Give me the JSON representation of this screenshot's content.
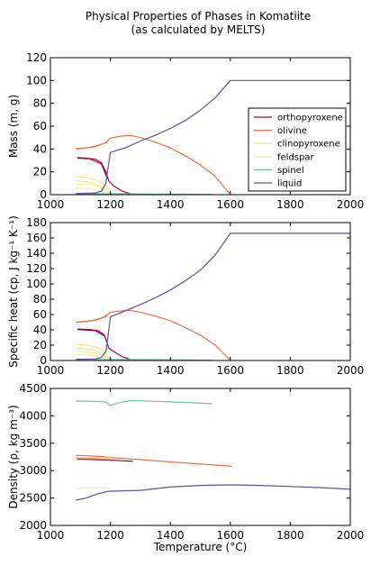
{
  "figure": {
    "title_line1": "Physical Properties of Phases in Komatiite",
    "title_line2": "(as calculated by MELTS)"
  },
  "colors": {
    "orthopyroxene": "#9e0142",
    "olivine": "#f46d43",
    "clinopyroxene": "#fee08b",
    "feldspar": "#e6f598",
    "spinel": "#66c2a5",
    "liquid": "#5e4fa2"
  },
  "chart_data": [
    {
      "type": "line",
      "ylabel": "Mass (m, g)",
      "xlim": [
        1000,
        2000
      ],
      "ylim": [
        0,
        120
      ],
      "xticks": [
        1000,
        1200,
        1400,
        1600,
        1800,
        2000
      ],
      "yticks": [
        0,
        20,
        40,
        60,
        80,
        100,
        120
      ],
      "legend": {
        "placement": "right",
        "entries": [
          "orthopyroxene",
          "olivine",
          "clinopyroxene",
          "feldspar",
          "spinel",
          "liquid"
        ]
      },
      "series": [
        {
          "name": "orthopyroxene",
          "points": [
            [
              1090,
              32.5
            ],
            [
              1120,
              32
            ],
            [
              1150,
              31
            ],
            [
              1170,
              28
            ],
            [
              1185,
              20
            ],
            [
              1195,
              12
            ],
            [
              1210,
              8
            ],
            [
              1240,
              3
            ],
            [
              1275,
              0
            ]
          ]
        },
        {
          "name": "orthopyroxene",
          "points": [
            [
              1090,
              32
            ],
            [
              1130,
              31.5
            ],
            [
              1170,
              27
            ],
            [
              1190,
              14
            ]
          ]
        },
        {
          "name": "olivine",
          "points": [
            [
              1085,
              40.5
            ],
            [
              1120,
              41
            ],
            [
              1150,
              42.5
            ],
            [
              1180,
              45
            ],
            [
              1190,
              47
            ],
            [
              1200,
              49.5
            ],
            [
              1230,
              51
            ],
            [
              1260,
              52
            ],
            [
              1275,
              51.5
            ],
            [
              1300,
              50
            ],
            [
              1350,
              46
            ],
            [
              1400,
              41
            ],
            [
              1450,
              34
            ],
            [
              1500,
              26
            ],
            [
              1550,
              16
            ],
            [
              1600,
              0
            ]
          ]
        },
        {
          "name": "olivine",
          "points": [
            [
              1085,
              40
            ],
            [
              1150,
              42
            ],
            [
              1190,
              46
            ]
          ]
        },
        {
          "name": "clinopyroxene",
          "points": [
            [
              1085,
              16
            ],
            [
              1120,
              15
            ],
            [
              1150,
              13
            ],
            [
              1170,
              10
            ],
            [
              1190,
              5
            ],
            [
              1200,
              0
            ]
          ]
        },
        {
          "name": "clinopyroxene",
          "points": [
            [
              1085,
              12
            ],
            [
              1130,
              11
            ],
            [
              1165,
              8
            ],
            [
              1190,
              3
            ]
          ]
        },
        {
          "name": "feldspar",
          "points": [
            [
              1085,
              9.5
            ],
            [
              1130,
              9
            ],
            [
              1160,
              7
            ],
            [
              1185,
              3.5
            ],
            [
              1200,
              1
            ]
          ]
        },
        {
          "name": "feldspar",
          "points": [
            [
              1085,
              6
            ],
            [
              1140,
              5
            ],
            [
              1180,
              2
            ]
          ]
        },
        {
          "name": "spinel",
          "points": [
            [
              1085,
              0.8
            ],
            [
              1200,
              0.8
            ],
            [
              1300,
              0.6
            ],
            [
              1450,
              0.4
            ],
            [
              1540,
              0.2
            ]
          ]
        },
        {
          "name": "liquid",
          "points": [
            [
              1085,
              1
            ],
            [
              1150,
              1.5
            ],
            [
              1170,
              3
            ],
            [
              1185,
              10
            ],
            [
              1190,
              20
            ],
            [
              1200,
              37
            ],
            [
              1250,
              41
            ],
            [
              1300,
              47
            ],
            [
              1350,
              52
            ],
            [
              1400,
              58
            ],
            [
              1450,
              65
            ],
            [
              1500,
              74
            ],
            [
              1550,
              85
            ],
            [
              1600,
              100
            ],
            [
              1800,
              100
            ],
            [
              2000,
              100
            ]
          ]
        }
      ]
    },
    {
      "type": "line",
      "ylabel": "Specific heat (cp, J kg⁻¹ K⁻¹)",
      "xlim": [
        1000,
        2000
      ],
      "ylim": [
        0,
        180
      ],
      "xticks": [
        1000,
        1200,
        1400,
        1600,
        1800,
        2000
      ],
      "yticks": [
        0,
        20,
        40,
        60,
        80,
        100,
        120,
        140,
        160,
        180
      ],
      "series": [
        {
          "name": "orthopyroxene",
          "points": [
            [
              1090,
              41
            ],
            [
              1130,
              40.5
            ],
            [
              1160,
              39
            ],
            [
              1180,
              33
            ],
            [
              1195,
              16
            ],
            [
              1210,
              12
            ],
            [
              1240,
              5
            ],
            [
              1275,
              0
            ]
          ]
        },
        {
          "name": "orthopyroxene",
          "points": [
            [
              1090,
              40.5
            ],
            [
              1150,
              39
            ],
            [
              1180,
              32
            ]
          ]
        },
        {
          "name": "olivine",
          "points": [
            [
              1085,
              50
            ],
            [
              1120,
              51
            ],
            [
              1150,
              53
            ],
            [
              1180,
              57
            ],
            [
              1200,
              63
            ],
            [
              1230,
              64.5
            ],
            [
              1260,
              65.5
            ],
            [
              1275,
              65
            ],
            [
              1300,
              63
            ],
            [
              1350,
              58
            ],
            [
              1400,
              52
            ],
            [
              1450,
              43
            ],
            [
              1500,
              33
            ],
            [
              1550,
              20
            ],
            [
              1600,
              0
            ]
          ]
        },
        {
          "name": "olivine",
          "points": [
            [
              1085,
              49.5
            ],
            [
              1150,
              52.5
            ],
            [
              1190,
              58
            ]
          ]
        },
        {
          "name": "clinopyroxene",
          "points": [
            [
              1085,
              21
            ],
            [
              1120,
              20
            ],
            [
              1150,
              18
            ],
            [
              1170,
              14
            ],
            [
              1190,
              7
            ],
            [
              1200,
              0
            ]
          ]
        },
        {
          "name": "clinopyroxene",
          "points": [
            [
              1085,
              16
            ],
            [
              1140,
              14
            ],
            [
              1175,
              9
            ],
            [
              1195,
              3
            ]
          ]
        },
        {
          "name": "feldspar",
          "points": [
            [
              1085,
              12
            ],
            [
              1130,
              11
            ],
            [
              1160,
              9
            ],
            [
              1185,
              5
            ],
            [
              1200,
              1
            ]
          ]
        },
        {
          "name": "feldspar",
          "points": [
            [
              1085,
              8
            ],
            [
              1140,
              7
            ],
            [
              1180,
              3
            ]
          ]
        },
        {
          "name": "spinel",
          "points": [
            [
              1085,
              1.5
            ],
            [
              1200,
              1.4
            ],
            [
              1300,
              1.2
            ],
            [
              1450,
              0.8
            ],
            [
              1540,
              0.5
            ]
          ]
        },
        {
          "name": "liquid",
          "points": [
            [
              1085,
              1.5
            ],
            [
              1150,
              2
            ],
            [
              1170,
              4
            ],
            [
              1185,
              12
            ],
            [
              1190,
              25
            ],
            [
              1200,
              57
            ],
            [
              1250,
              65
            ],
            [
              1300,
              73
            ],
            [
              1350,
              82
            ],
            [
              1400,
              92
            ],
            [
              1450,
              104
            ],
            [
              1500,
              118
            ],
            [
              1550,
              138
            ],
            [
              1600,
              166
            ],
            [
              1800,
              166
            ],
            [
              2000,
              166
            ]
          ]
        }
      ]
    },
    {
      "type": "line",
      "ylabel": "Density (ρ, kg m⁻³)",
      "xlabel": "Temperature (°C)",
      "xlim": [
        1000,
        2000
      ],
      "ylim": [
        2000,
        4500
      ],
      "xticks": [
        1000,
        1200,
        1400,
        1600,
        1800,
        2000
      ],
      "yticks": [
        2000,
        2500,
        3000,
        3500,
        4000,
        4500
      ],
      "series": [
        {
          "name": "orthopyroxene",
          "points": [
            [
              1090,
              3210
            ],
            [
              1150,
              3200
            ],
            [
              1200,
              3190
            ],
            [
              1240,
              3180
            ],
            [
              1275,
              3170
            ]
          ]
        },
        {
          "name": "olivine",
          "points": [
            [
              1085,
              3280
            ],
            [
              1150,
              3265
            ],
            [
              1200,
              3240
            ],
            [
              1300,
              3200
            ],
            [
              1400,
              3160
            ],
            [
              1500,
              3120
            ],
            [
              1605,
              3080
            ]
          ]
        },
        {
          "name": "olivine",
          "points": [
            [
              1085,
              3225
            ],
            [
              1150,
              3215
            ],
            [
              1200,
              3200
            ]
          ]
        },
        {
          "name": "clinopyroxene",
          "points": [
            [
              1085,
              3240
            ],
            [
              1150,
              3235
            ],
            [
              1200,
              3230
            ]
          ]
        },
        {
          "name": "feldspar",
          "points": [
            [
              1085,
              2680
            ],
            [
              1150,
              2680
            ],
            [
              1200,
              2680
            ]
          ]
        },
        {
          "name": "spinel",
          "points": [
            [
              1085,
              4270
            ],
            [
              1150,
              4265
            ],
            [
              1185,
              4250
            ],
            [
              1200,
              4190
            ],
            [
              1230,
              4240
            ],
            [
              1270,
              4280
            ],
            [
              1350,
              4265
            ],
            [
              1450,
              4245
            ],
            [
              1540,
              4220
            ]
          ]
        },
        {
          "name": "liquid",
          "points": [
            [
              1085,
              2460
            ],
            [
              1120,
              2500
            ],
            [
              1160,
              2580
            ],
            [
              1190,
              2620
            ],
            [
              1200,
              2625
            ],
            [
              1300,
              2640
            ],
            [
              1400,
              2700
            ],
            [
              1500,
              2730
            ],
            [
              1600,
              2740
            ],
            [
              1700,
              2730
            ],
            [
              1800,
              2710
            ],
            [
              1900,
              2690
            ],
            [
              2000,
              2660
            ]
          ]
        }
      ]
    }
  ]
}
